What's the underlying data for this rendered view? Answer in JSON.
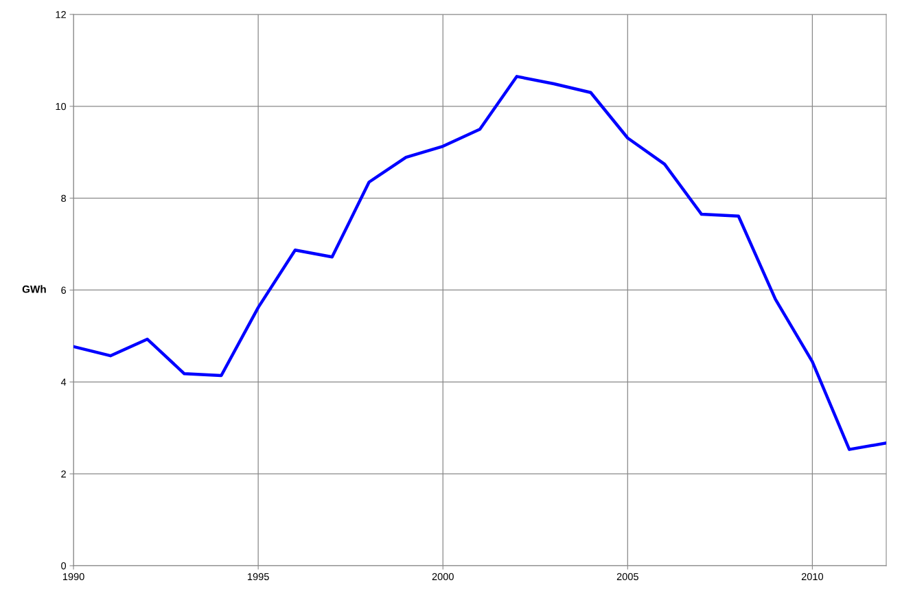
{
  "chart_data": {
    "type": "line",
    "ylabel": "GWh",
    "x": [
      1990,
      1991,
      1992,
      1993,
      1994,
      1995,
      1996,
      1997,
      1998,
      1999,
      2000,
      2001,
      2002,
      2003,
      2004,
      2005,
      2006,
      2007,
      2008,
      2009,
      2010,
      2011,
      2012
    ],
    "series": [
      {
        "color": "#0000ff",
        "values": [
          4.77,
          4.57,
          4.93,
          4.18,
          4.14,
          5.62,
          6.87,
          6.72,
          8.35,
          8.89,
          9.13,
          9.5,
          10.65,
          10.49,
          10.3,
          9.31,
          8.74,
          7.65,
          7.61,
          5.8,
          4.44,
          2.53,
          2.67
        ]
      }
    ],
    "xlim": [
      1990,
      2012
    ],
    "xticks": [
      1990,
      1995,
      2000,
      2005,
      2010
    ],
    "ylim": [
      0,
      12
    ],
    "yticks": [
      0,
      2,
      4,
      6,
      8,
      10,
      12
    ],
    "grid": true,
    "marker": "none",
    "line_style": "solid"
  }
}
